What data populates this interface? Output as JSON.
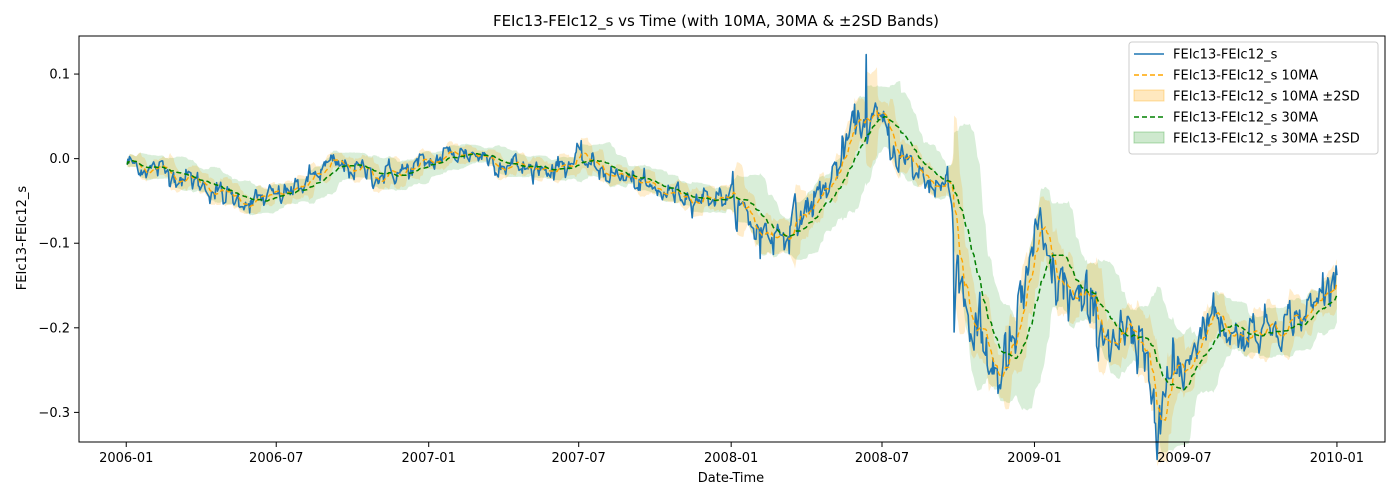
{
  "chart_data": {
    "type": "line",
    "title": "FEIc13-FEIc12_s vs Time (with 10MA, 30MA & ±2SD Bands)",
    "xlabel": "Date-Time",
    "ylabel": "FEIc13-FEIc12_s",
    "xlim": [
      "2005-11-05",
      "2010-02-28"
    ],
    "ylim": [
      -0.335,
      0.145
    ],
    "x_ticks": [
      {
        "date": "2006-01-01",
        "label": "2006-01"
      },
      {
        "date": "2006-07-01",
        "label": "2006-07"
      },
      {
        "date": "2007-01-01",
        "label": "2007-01"
      },
      {
        "date": "2007-07-01",
        "label": "2007-07"
      },
      {
        "date": "2008-01-01",
        "label": "2008-01"
      },
      {
        "date": "2008-07-01",
        "label": "2008-07"
      },
      {
        "date": "2009-01-01",
        "label": "2009-01"
      },
      {
        "date": "2009-07-01",
        "label": "2009-07"
      },
      {
        "date": "2010-01-01",
        "label": "2010-01"
      }
    ],
    "y_ticks": [
      {
        "value": 0.1,
        "label": "0.1"
      },
      {
        "value": 0.0,
        "label": "0.0"
      },
      {
        "value": -0.1,
        "label": "−0.1"
      },
      {
        "value": -0.2,
        "label": "−0.2"
      },
      {
        "value": -0.3,
        "label": "−0.3"
      }
    ],
    "legend_position": "top-right",
    "series": [
      {
        "name": "FEIc13-FEIc12_s",
        "kind": "line",
        "color": "#1f77b4",
        "dash": "solid"
      },
      {
        "name": "FEIc13-FEIc12_s 10MA",
        "kind": "line",
        "color": "#ffa500",
        "dash": "dashed"
      },
      {
        "name": "FEIc13-FEIc12_s 10MA ±2SD",
        "kind": "band",
        "color": "#ffa500",
        "opacity": 0.2
      },
      {
        "name": "FEIc13-FEIc12_s 30MA",
        "kind": "line",
        "color": "#008000",
        "dash": "dashed"
      },
      {
        "name": "FEIc13-FEIc12_s 30MA ±2SD",
        "kind": "band",
        "color": "#2ca02c",
        "opacity": 0.18
      }
    ],
    "trend_points": [
      [
        "2006-01-01",
        -0.005
      ],
      [
        "2006-02-01",
        -0.012
      ],
      [
        "2006-03-01",
        -0.018
      ],
      [
        "2006-04-01",
        -0.03
      ],
      [
        "2006-05-01",
        -0.045
      ],
      [
        "2006-06-01",
        -0.05
      ],
      [
        "2006-07-01",
        -0.045
      ],
      [
        "2006-08-01",
        -0.032
      ],
      [
        "2006-09-01",
        -0.008
      ],
      [
        "2006-10-01",
        -0.012
      ],
      [
        "2006-11-01",
        -0.02
      ],
      [
        "2006-12-01",
        -0.015
      ],
      [
        "2007-01-01",
        -0.005
      ],
      [
        "2007-02-01",
        0.008
      ],
      [
        "2007-03-01",
        0.005
      ],
      [
        "2007-04-01",
        -0.005
      ],
      [
        "2007-05-01",
        -0.012
      ],
      [
        "2007-06-01",
        -0.01
      ],
      [
        "2007-07-01",
        0.0
      ],
      [
        "2007-08-01",
        -0.015
      ],
      [
        "2007-09-01",
        -0.025
      ],
      [
        "2007-10-01",
        -0.04
      ],
      [
        "2007-11-01",
        -0.042
      ],
      [
        "2007-12-01",
        -0.045
      ],
      [
        "2008-01-01",
        -0.045
      ],
      [
        "2008-02-01",
        -0.085
      ],
      [
        "2008-03-01",
        -0.088
      ],
      [
        "2008-04-01",
        -0.06
      ],
      [
        "2008-05-01",
        -0.025
      ],
      [
        "2008-06-01",
        0.045
      ],
      [
        "2008-07-01",
        0.04
      ],
      [
        "2008-08-01",
        -0.01
      ],
      [
        "2008-09-01",
        -0.028
      ],
      [
        "2008-09-20",
        -0.035
      ],
      [
        "2008-10-10",
        -0.175
      ],
      [
        "2008-11-01",
        -0.23
      ],
      [
        "2008-11-20",
        -0.255
      ],
      [
        "2008-12-10",
        -0.215
      ],
      [
        "2009-01-01",
        -0.09
      ],
      [
        "2009-01-20",
        -0.14
      ],
      [
        "2009-02-10",
        -0.16
      ],
      [
        "2009-03-01",
        -0.18
      ],
      [
        "2009-04-01",
        -0.205
      ],
      [
        "2009-05-01",
        -0.23
      ],
      [
        "2009-06-01",
        -0.28
      ],
      [
        "2009-07-01",
        -0.24
      ],
      [
        "2009-08-01",
        -0.18
      ],
      [
        "2009-09-01",
        -0.21
      ],
      [
        "2009-10-01",
        -0.2
      ],
      [
        "2009-11-01",
        -0.19
      ],
      [
        "2009-12-01",
        -0.18
      ],
      [
        "2010-01-01",
        -0.14
      ]
    ]
  }
}
